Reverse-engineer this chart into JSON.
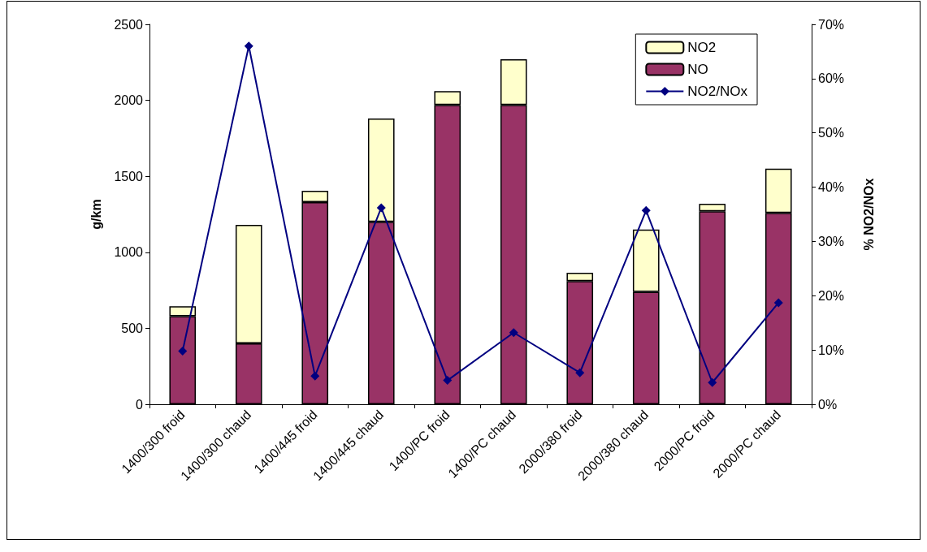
{
  "chart_data": {
    "type": "bar",
    "stacked": true,
    "ylabel": "g/km",
    "y2label": "% NO2/NOx",
    "categories": [
      "1400/300 froid",
      "1400/300 chaud",
      "1400/445 froid",
      "1400/445 chaud",
      "1400/PC froid",
      "1400/PC chaud",
      "2000/380 froid",
      "2000/380 chaud",
      "2000/PC froid",
      "2000/PC chaud"
    ],
    "series": [
      {
        "name": "NO",
        "color": "#993366",
        "values": [
          580,
          400,
          1330,
          1200,
          1970,
          1970,
          810,
          740,
          1270,
          1260
        ]
      },
      {
        "name": "NO2",
        "color": "#ffffcc",
        "values": [
          65,
          780,
          75,
          680,
          90,
          300,
          55,
          410,
          50,
          290
        ]
      },
      {
        "name": "NO2/NOx",
        "type": "line",
        "axis": "y2",
        "color": "#000080",
        "marker": "diamond",
        "values": [
          9.8,
          66,
          5.2,
          36.2,
          4.4,
          13.2,
          5.8,
          35.7,
          4.0,
          18.7
        ]
      }
    ],
    "ylim": [
      0,
      2500
    ],
    "yticks": [
      0,
      500,
      1000,
      1500,
      2000,
      2500
    ],
    "y2lim": [
      0,
      70
    ],
    "y2ticks": [
      {
        "value": 0,
        "label": "0%"
      },
      {
        "value": 10,
        "label": "10%"
      },
      {
        "value": 20,
        "label": "20%"
      },
      {
        "value": 30,
        "label": "30%"
      },
      {
        "value": 40,
        "label": "40%"
      },
      {
        "value": 50,
        "label": "50%"
      },
      {
        "value": 60,
        "label": "60%"
      },
      {
        "value": 70,
        "label": "70%"
      }
    ],
    "legend": "top right",
    "grid": false
  }
}
